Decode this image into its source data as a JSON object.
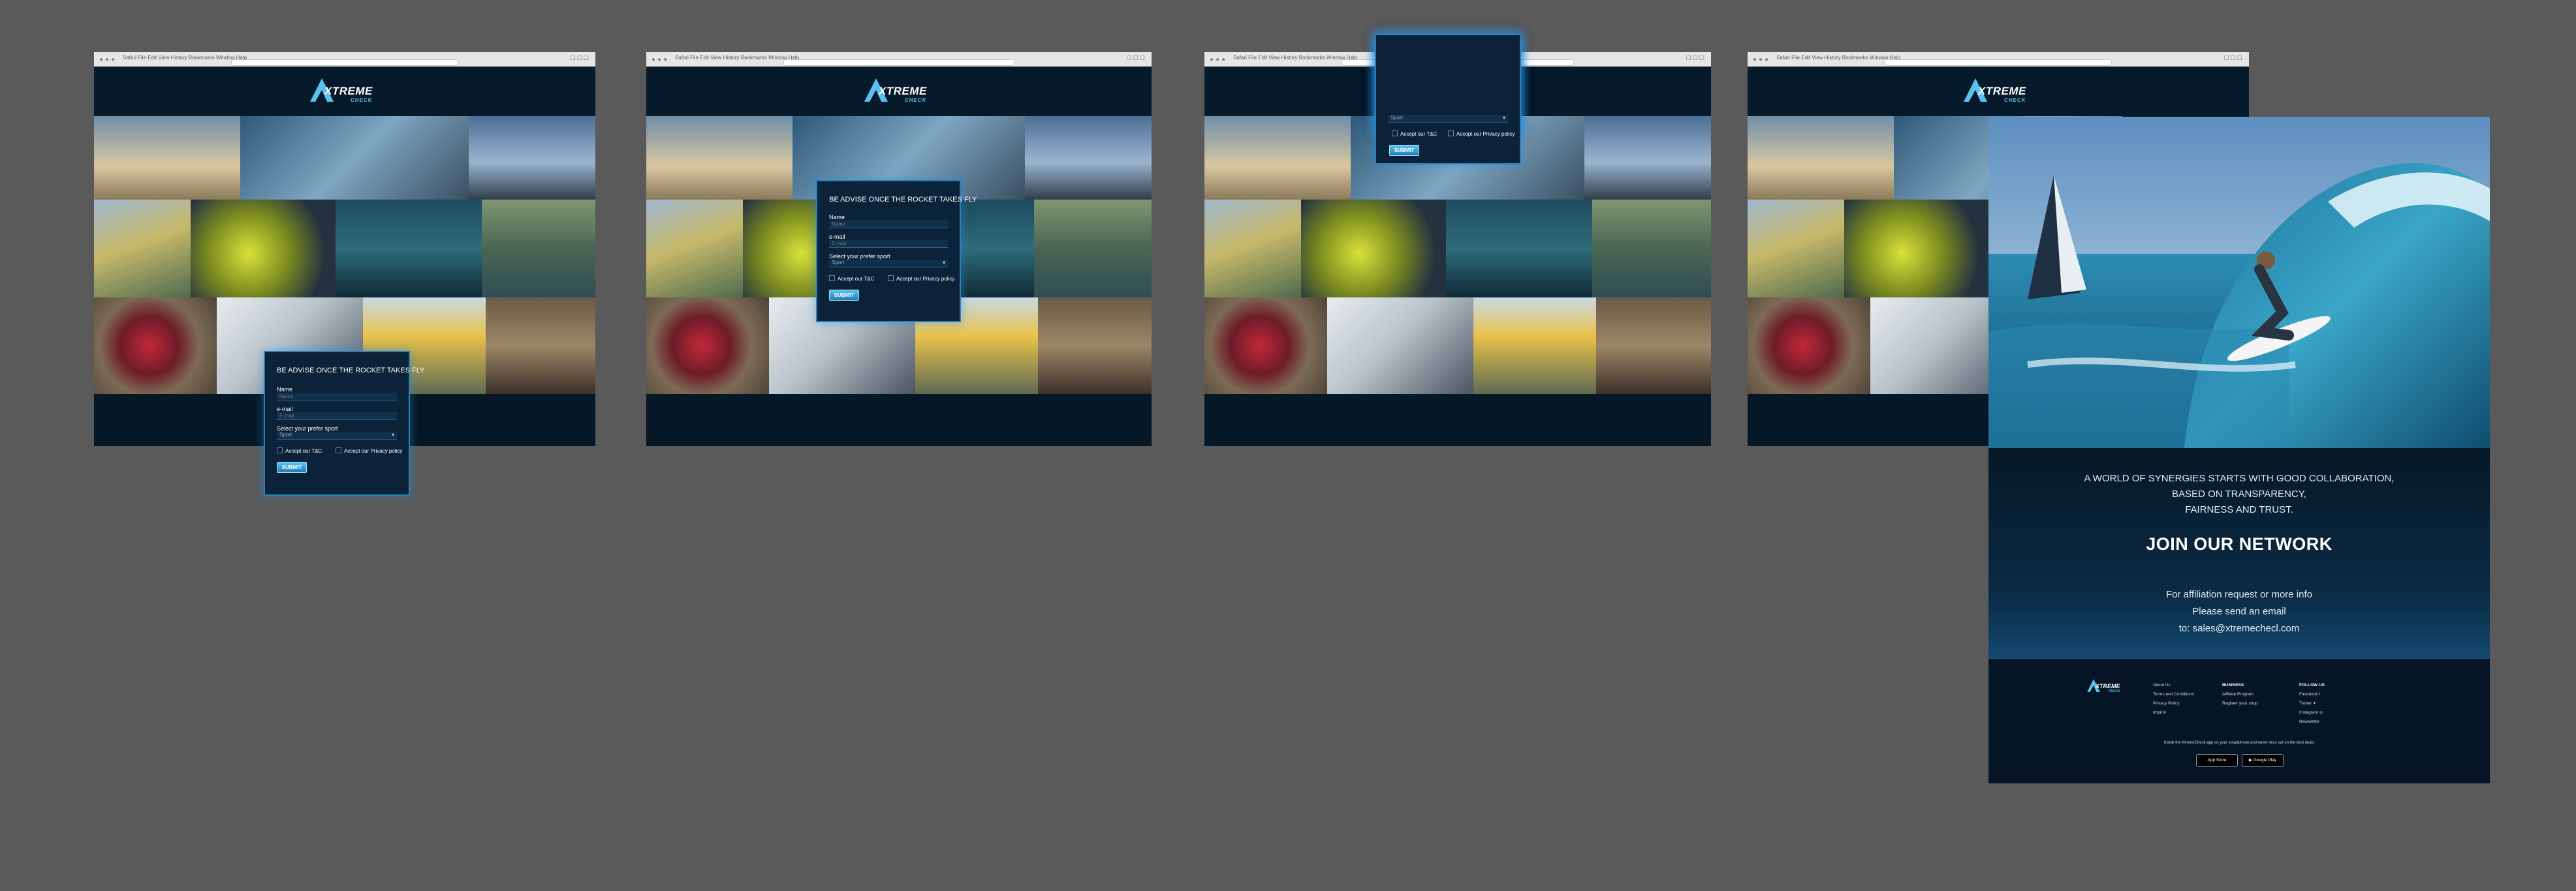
{
  "browser": {
    "menu": "Safari  File  Edit  View  History  Bookmarks  Window  Help"
  },
  "brand": {
    "name": "XTREME",
    "sub": "CHECK"
  },
  "form": {
    "title": "BE ADVISE ONCE THE ROCKET TAKES FLY",
    "name_label": "Name",
    "name_placeholder": "Name",
    "email_label": "e-mail",
    "email_placeholder": "E-mail",
    "sport_label": "Select your prefer sport",
    "sport_value": "Sport",
    "tc_label": "Accept our T&C",
    "privacy_label": "Accept our Privacy policy",
    "submit_label": "SUBMIT"
  },
  "info": {
    "line1": "A WORLD OF SYNERGIES STARTS WITH GOOD COLLABORATION,",
    "line2": "BASED ON TRANSPARENCY,",
    "line3": "FAIRNESS AND TRUST.",
    "heading": "JOIN OUR NETWORK",
    "contact1": "For affiliation request or more info",
    "contact2": "Please send an email",
    "contact3": "to: sales@xtremechecl.com"
  },
  "footer": {
    "col1": [
      "About Us",
      "Terms and Conditions",
      "Privacy Policy",
      "Imprint"
    ],
    "col2_title": "BUSINESS",
    "col2": [
      "Affiliate Program",
      "Register your shop"
    ],
    "col3_title": "FOLLOW US",
    "col3": [
      "Facebook",
      "Twitter",
      "Instagram",
      "Newsletter"
    ],
    "note": "Install the XtremeCheck app on your smartphone and never miss out on the best deals",
    "app_store": "App Store",
    "google_play": "Google Play"
  },
  "icons": [
    "facebook-icon",
    "twitter-icon",
    "instagram-icon",
    "apple-icon",
    "google-play-icon"
  ],
  "colors": {
    "page_bg": "#5a5a5a",
    "site_bg": "#061a2b",
    "accent": "#2a7fbd",
    "brand_blue": "#5cc0ee"
  }
}
